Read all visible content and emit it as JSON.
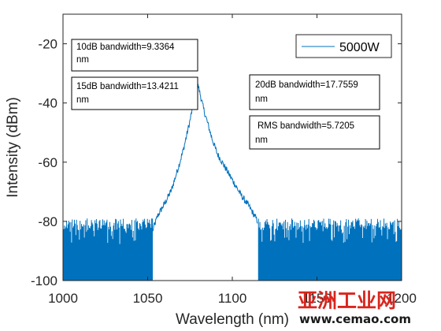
{
  "chart_data": {
    "type": "line",
    "xlabel": "Wavelength (nm)",
    "ylabel": "Intensity (dBm)",
    "xlim": [
      1000,
      1200
    ],
    "ylim": [
      -100,
      -10
    ],
    "x_ticks": [
      "1000",
      "1050",
      "1100",
      "1150",
      "1200"
    ],
    "y_ticks": [
      "-20",
      "-40",
      "-60",
      "-80",
      "-100"
    ],
    "grid": false,
    "legend_position": "top-right",
    "series": [
      {
        "name": "5000W",
        "color": "#0072BD",
        "peak": {
          "x": 1079,
          "y": -33.5
        },
        "x": [
          1053,
          1056,
          1060,
          1064,
          1068,
          1071,
          1073,
          1075,
          1077,
          1078,
          1079,
          1080,
          1081,
          1083,
          1085,
          1088,
          1091,
          1095,
          1100,
          1105,
          1110,
          1115
        ],
        "y": [
          -83,
          -78,
          -74,
          -69.5,
          -62,
          -56,
          -51,
          -46,
          -40,
          -36,
          -33.5,
          -34.5,
          -37,
          -42,
          -46,
          -52,
          -57,
          -61,
          -66,
          -71,
          -75,
          -80
        ],
        "noise_floor": {
          "x_ranges": [
            [
              1000,
              1053
            ],
            [
              1115,
              1200
            ]
          ],
          "level_range": [
            -100,
            -79
          ]
        }
      }
    ],
    "annotations": [
      {
        "line1": "10dB bandwidth=9.3364",
        "line2": "nm"
      },
      {
        "line1": "15dB bandwidth=13.4211",
        "line2": "nm"
      },
      {
        "line1": "20dB bandwidth=17.7559",
        "line2": "nm"
      },
      {
        "line1": "RMS bandwidth=5.7205",
        "line2": "nm"
      }
    ]
  },
  "watermark": {
    "chinese": "亚洲工业网",
    "url": "www.cemao.com"
  }
}
